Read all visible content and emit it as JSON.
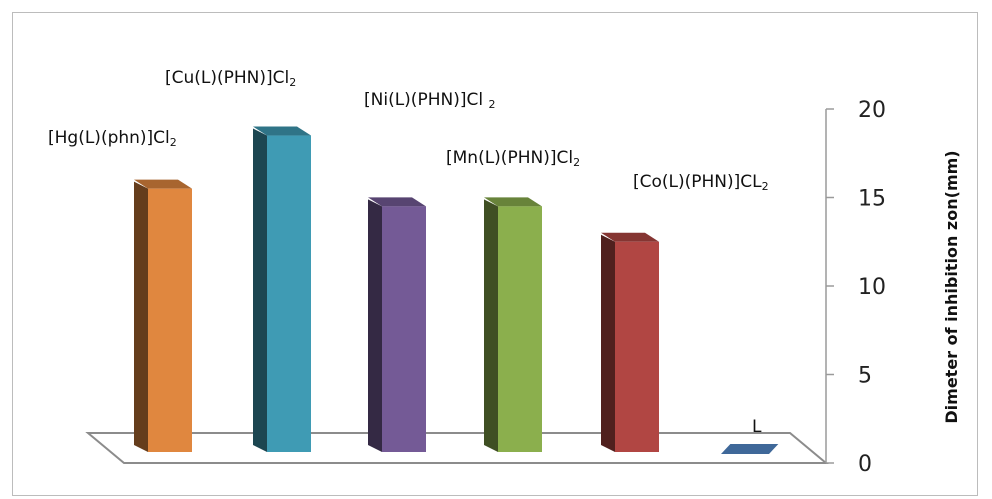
{
  "chart_data": {
    "type": "bar",
    "title": "",
    "xlabel": "",
    "ylabel": "Dimeter of inhibition zon(mm)",
    "ylim": [
      0,
      20
    ],
    "yticks": [
      "0",
      "5",
      "10",
      "15",
      "20"
    ],
    "grid": false,
    "legend": "none",
    "categories": [
      {
        "main": "[Hg(L)(phn)]Cl",
        "sub": "2"
      },
      {
        "main": "[Cu(L)(PHN)]Cl",
        "sub": "2"
      },
      {
        "main": "[Ni(L)(PHN)]Cl ",
        "sub": "2"
      },
      {
        "main": "[Mn(L)(PHN)]Cl",
        "sub": "2"
      },
      {
        "main": "[Co(L)(PHN)]CL",
        "sub": "2"
      },
      {
        "main": "L",
        "sub": ""
      }
    ],
    "values": [
      15.5,
      18.5,
      14.5,
      14.5,
      12.5,
      0.5
    ],
    "colors": [
      "#E0873F",
      "#3F9BB4",
      "#745A96",
      "#8BAF4D",
      "#B14643",
      "#3F6899"
    ]
  }
}
